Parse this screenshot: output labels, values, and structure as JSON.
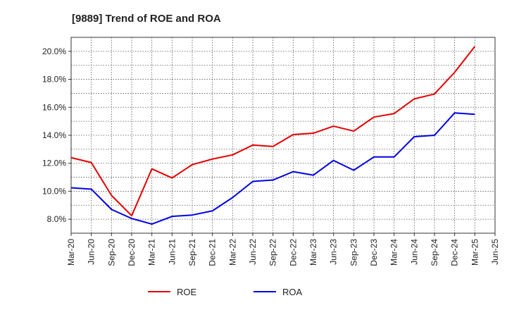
{
  "chart_data": {
    "type": "line",
    "title": "[9889]  Trend of ROE and ROA",
    "xlabel": "",
    "ylabel": "",
    "x": [
      "Mar-20",
      "Jun-20",
      "Sep-20",
      "Dec-20",
      "Mar-21",
      "Jun-21",
      "Sep-21",
      "Dec-21",
      "Mar-22",
      "Jun-22",
      "Sep-22",
      "Dec-22",
      "Mar-23",
      "Jun-23",
      "Sep-23",
      "Dec-23",
      "Mar-24",
      "Jun-24",
      "Sep-24",
      "Dec-24",
      "Mar-25",
      "Jun-25"
    ],
    "y_ticks": [
      8.0,
      10.0,
      12.0,
      14.0,
      16.0,
      18.0,
      20.0
    ],
    "y_tick_labels": [
      "8.0%",
      "10.0%",
      "12.0%",
      "14.0%",
      "16.0%",
      "18.0%",
      "20.0%"
    ],
    "ylim": [
      7.0,
      21.0
    ],
    "grid": true,
    "legend_position": "bottom",
    "series": [
      {
        "name": "ROE",
        "color": "#e60000",
        "values": [
          12.4,
          12.05,
          9.7,
          8.25,
          11.6,
          10.95,
          11.9,
          12.3,
          12.6,
          13.3,
          13.2,
          14.05,
          14.15,
          14.65,
          14.3,
          15.3,
          15.55,
          16.6,
          16.95,
          18.5,
          20.35,
          null
        ]
      },
      {
        "name": "ROA",
        "color": "#0000e6",
        "values": [
          10.25,
          10.15,
          8.7,
          8.05,
          7.65,
          8.2,
          8.3,
          8.6,
          9.55,
          10.7,
          10.8,
          11.4,
          11.15,
          12.2,
          11.5,
          12.45,
          12.45,
          13.9,
          14.0,
          15.6,
          15.5,
          null
        ]
      }
    ]
  }
}
